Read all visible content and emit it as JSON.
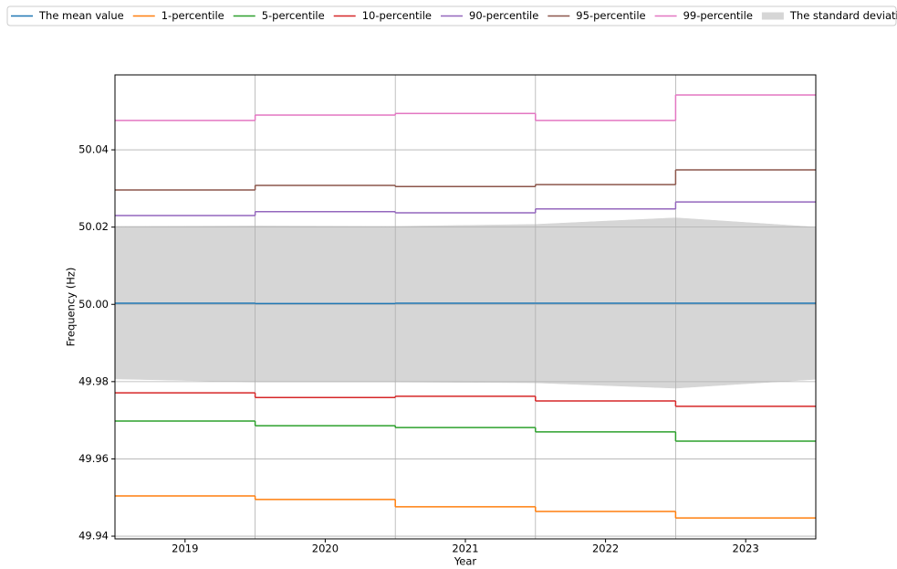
{
  "chart_data": {
    "type": "line",
    "step": "mid",
    "x_label": "Year",
    "y_label": "Frequency (Hz)",
    "x": [
      2019,
      2020,
      2021,
      2022,
      2023
    ],
    "xlim": [
      2018.5,
      2023.5
    ],
    "xticks": [
      2019,
      2020,
      2021,
      2022,
      2023
    ],
    "ylim": [
      49.9393,
      50.0594
    ],
    "yticks": [
      49.94,
      49.96,
      49.98,
      {
        "value": 50,
        "label": "50.00"
      },
      50.02,
      50.04
    ],
    "grid": true,
    "legend": "top",
    "series": [
      {
        "name": "The mean value",
        "color": "#1f77b4",
        "values": [
          50.0003,
          50.0002,
          50.0003,
          50.0003,
          50.0003
        ]
      },
      {
        "name": "1-percentile",
        "color": "#ff7f0e",
        "values": [
          49.9504,
          49.9495,
          49.9476,
          49.9464,
          49.9447
        ]
      },
      {
        "name": "5-percentile",
        "color": "#2ca02c",
        "values": [
          49.9698,
          49.9686,
          49.9681,
          49.967,
          49.9646
        ]
      },
      {
        "name": "10-percentile",
        "color": "#d62728",
        "values": [
          49.9771,
          49.9759,
          49.9762,
          49.975,
          49.9736
        ]
      },
      {
        "name": "90-percentile",
        "color": "#9467bd",
        "values": [
          50.023,
          50.024,
          50.0237,
          50.0247,
          50.0265
        ]
      },
      {
        "name": "95-percentile",
        "color": "#8c564b",
        "values": [
          50.0296,
          50.0308,
          50.0305,
          50.031,
          50.0348
        ]
      },
      {
        "name": "99-percentile",
        "color": "#e377c2",
        "values": [
          50.0476,
          50.049,
          50.0494,
          50.0476,
          50.0542
        ]
      }
    ],
    "band": {
      "name": "The standard deviation",
      "color": "#d6d6d6",
      "x": [
        2018.5,
        2019.5,
        2020.5,
        2021.5,
        2022.5,
        2023.5
      ],
      "upper": [
        50.0202,
        50.0203,
        50.0202,
        50.0207,
        50.0224,
        50.02
      ],
      "lower": [
        49.9807,
        49.9799,
        49.9799,
        49.9797,
        49.9783,
        49.9806
      ]
    }
  }
}
